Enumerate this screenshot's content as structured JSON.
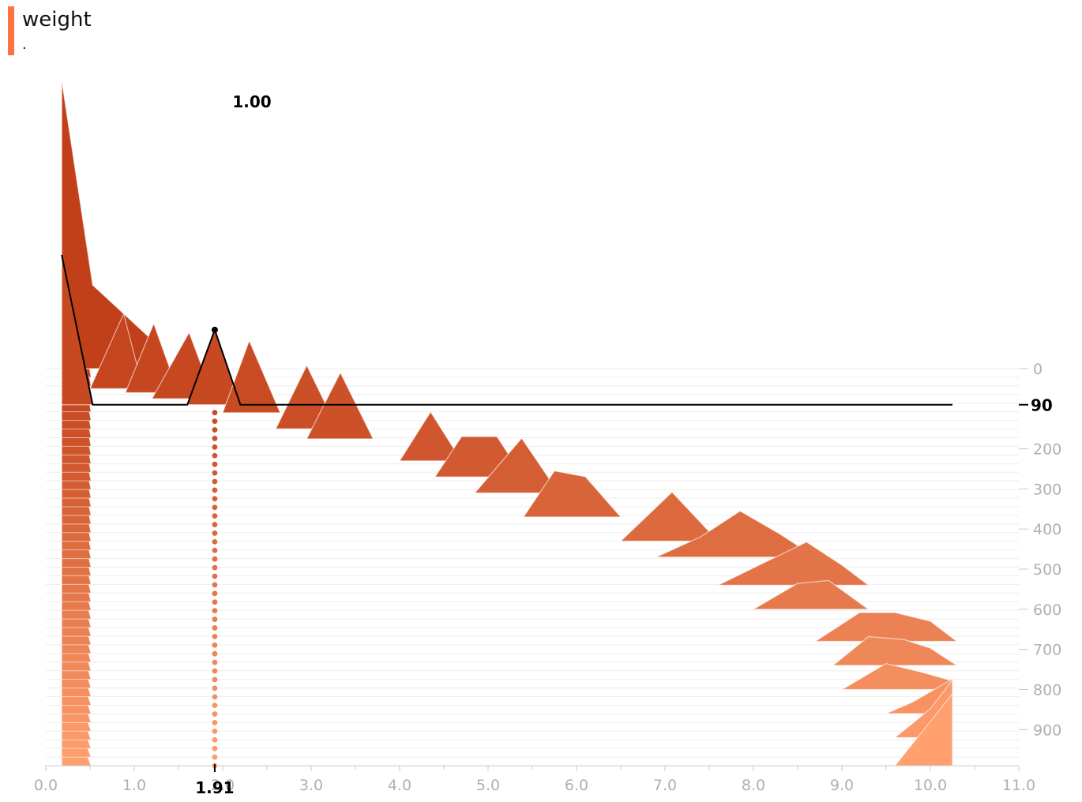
{
  "tag": {
    "name": "weight",
    "description": ".",
    "color": "#ff7043"
  },
  "chart_data": {
    "type": "histogram",
    "title": "weight",
    "xlim": [
      0.0,
      11.0
    ],
    "x_ticks": [
      0.0,
      1.0,
      2.0,
      3.0,
      4.0,
      5.0,
      6.0,
      7.0,
      8.0,
      9.0,
      10.0,
      11.0
    ],
    "x_tick_labels": [
      "0.0",
      "1.0",
      "2.0",
      "3.0",
      "4.0",
      "5.0",
      "6.0",
      "7.0",
      "8.0",
      "9.0",
      "10.0",
      "11.0"
    ],
    "step_ticks": [
      0,
      200,
      300,
      400,
      500,
      600,
      700,
      800,
      900
    ],
    "step_tick_labels": [
      "0",
      "200",
      "300",
      "400",
      "500",
      "600",
      "700",
      "800",
      "900"
    ],
    "step_range": [
      0,
      990
    ],
    "color_start": "#c1401a",
    "color_end": "#ffa06e",
    "histograms": [
      {
        "step": 0,
        "bins": [
          [
            0.18,
            1.0
          ],
          [
            0.53,
            0.29
          ],
          [
            1.2,
            0.1
          ],
          [
            1.4,
            0
          ]
        ]
      },
      {
        "step": 90,
        "bins": [
          [
            0.18,
            0.52
          ],
          [
            0.53,
            0
          ],
          [
            1.6,
            0
          ],
          [
            1.91,
            0.26
          ],
          [
            2.2,
            0
          ]
        ]
      },
      {
        "step": 50,
        "bins": [
          [
            0.5,
            0
          ],
          [
            0.88,
            0.26
          ],
          [
            1.1,
            0
          ]
        ]
      },
      {
        "step": 60,
        "bins": [
          [
            0.9,
            0
          ],
          [
            1.22,
            0.24
          ],
          [
            1.5,
            0
          ]
        ]
      },
      {
        "step": 75,
        "bins": [
          [
            1.2,
            0
          ],
          [
            1.62,
            0.23
          ],
          [
            1.9,
            0
          ]
        ]
      },
      {
        "step": 110,
        "bins": [
          [
            2.0,
            0
          ],
          [
            2.3,
            0.25
          ],
          [
            2.65,
            0
          ]
        ]
      },
      {
        "step": 150,
        "bins": [
          [
            2.6,
            0
          ],
          [
            2.95,
            0.22
          ],
          [
            3.3,
            0
          ]
        ]
      },
      {
        "step": 175,
        "bins": [
          [
            2.95,
            0
          ],
          [
            3.33,
            0.23
          ],
          [
            3.7,
            0
          ]
        ]
      },
      {
        "step": 230,
        "bins": [
          [
            4.0,
            0
          ],
          [
            4.35,
            0.17
          ],
          [
            4.7,
            0
          ]
        ]
      },
      {
        "step": 270,
        "bins": [
          [
            4.4,
            0
          ],
          [
            4.7,
            0.14
          ],
          [
            5.1,
            0.14
          ],
          [
            5.4,
            0
          ]
        ]
      },
      {
        "step": 310,
        "bins": [
          [
            4.85,
            0
          ],
          [
            5.38,
            0.19
          ],
          [
            5.8,
            0
          ]
        ]
      },
      {
        "step": 370,
        "bins": [
          [
            5.4,
            0
          ],
          [
            5.75,
            0.16
          ],
          [
            6.1,
            0.14
          ],
          [
            6.5,
            0
          ]
        ]
      },
      {
        "step": 430,
        "bins": [
          [
            6.5,
            0
          ],
          [
            7.08,
            0.17
          ],
          [
            7.6,
            0
          ]
        ]
      },
      {
        "step": 470,
        "bins": [
          [
            6.9,
            0
          ],
          [
            7.4,
            0.07
          ],
          [
            7.85,
            0.16
          ],
          [
            8.3,
            0.08
          ],
          [
            8.7,
            0
          ]
        ]
      },
      {
        "step": 540,
        "bins": [
          [
            7.6,
            0
          ],
          [
            8.2,
            0.09
          ],
          [
            8.6,
            0.15
          ],
          [
            9.0,
            0.07
          ],
          [
            9.3,
            0
          ]
        ]
      },
      {
        "step": 600,
        "bins": [
          [
            8.0,
            0
          ],
          [
            8.5,
            0.09
          ],
          [
            8.85,
            0.1
          ],
          [
            9.3,
            0
          ]
        ]
      },
      {
        "step": 680,
        "bins": [
          [
            8.7,
            0
          ],
          [
            9.2,
            0.1
          ],
          [
            9.6,
            0.1
          ],
          [
            10.0,
            0.07
          ],
          [
            10.3,
            0
          ]
        ]
      },
      {
        "step": 740,
        "bins": [
          [
            8.9,
            0
          ],
          [
            9.3,
            0.1
          ],
          [
            9.7,
            0.09
          ],
          [
            10.0,
            0.06
          ],
          [
            10.3,
            0
          ]
        ]
      },
      {
        "step": 800,
        "bins": [
          [
            9.0,
            0
          ],
          [
            9.5,
            0.09
          ],
          [
            9.9,
            0.06
          ],
          [
            10.25,
            0.03
          ]
        ]
      },
      {
        "step": 860,
        "bins": [
          [
            9.5,
            0
          ],
          [
            9.8,
            0.04
          ],
          [
            10.25,
            0.12
          ]
        ]
      },
      {
        "step": 920,
        "bins": [
          [
            9.6,
            0
          ],
          [
            10.0,
            0.1
          ],
          [
            10.25,
            0.2
          ]
        ]
      },
      {
        "step": 990,
        "bins": [
          [
            9.6,
            0
          ],
          [
            10.25,
            0.25
          ]
        ]
      }
    ],
    "left_edge_slices": 46,
    "focus": {
      "step": 90,
      "x": 1.91,
      "x_label": "1.91",
      "step_label": "90",
      "value_label": "1.00"
    }
  }
}
